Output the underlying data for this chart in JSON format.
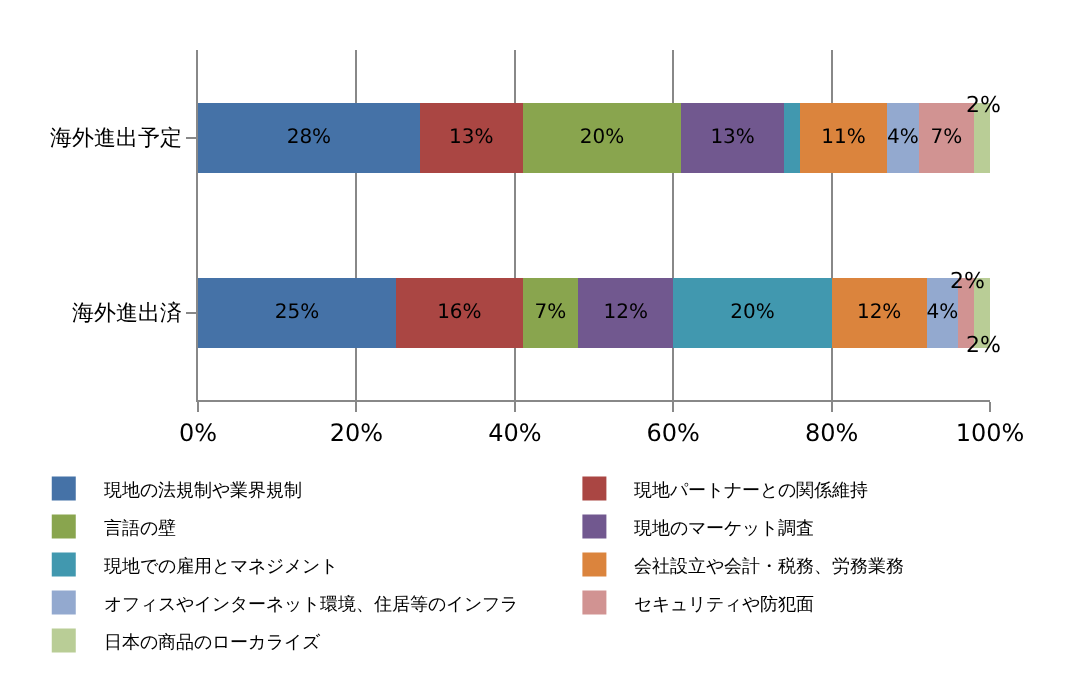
{
  "chart_data": {
    "type": "bar",
    "orientation": "horizontal",
    "stacked": true,
    "categories": [
      "海外進出予定",
      "海外進出済"
    ],
    "series": [
      {
        "name": "現地の法規制や業界規制",
        "color": "#4572a7",
        "values": [
          28,
          25
        ],
        "value_labels": [
          "28%",
          "25%"
        ]
      },
      {
        "name": "現地パートナーとの関係維持",
        "color": "#aa4643",
        "values": [
          13,
          16
        ],
        "value_labels": [
          "13%",
          "16%"
        ]
      },
      {
        "name": "言語の壁",
        "color": "#89a54e",
        "values": [
          20,
          7
        ],
        "value_labels": [
          "20%",
          "7%"
        ]
      },
      {
        "name": "現地のマーケット調査",
        "color": "#71588f",
        "values": [
          13,
          12
        ],
        "value_labels": [
          "13%",
          "12%"
        ]
      },
      {
        "name": "現地での雇用とマネジメント",
        "color": "#4198af",
        "values": [
          2,
          20
        ],
        "value_labels": [
          null,
          "20%"
        ]
      },
      {
        "name": "会社設立や会計・税務、労務業務",
        "color": "#db843d",
        "values": [
          11,
          12
        ],
        "value_labels": [
          "11%",
          "12%"
        ]
      },
      {
        "name": "オフィスやインターネット環境、住居等のインフラ",
        "color": "#93a9cf",
        "values": [
          4,
          4
        ],
        "value_labels": [
          "4%",
          "4%"
        ]
      },
      {
        "name": "セキュリティや防犯面",
        "color": "#d19392",
        "values": [
          7,
          2
        ],
        "value_labels": [
          "7%",
          "2%"
        ]
      },
      {
        "name": "日本の商品のローカライズ",
        "color": "#b9cd96",
        "values": [
          2,
          2
        ],
        "value_labels": [
          "2%",
          "2%"
        ]
      }
    ],
    "xlim": [
      0,
      100
    ],
    "xticks": [
      {
        "value": 0,
        "label": "0%"
      },
      {
        "value": 20,
        "label": "20%"
      },
      {
        "value": 40,
        "label": "40%"
      },
      {
        "value": 60,
        "label": "60%"
      },
      {
        "value": 80,
        "label": "80%"
      },
      {
        "value": 100,
        "label": "100%"
      }
    ],
    "grid": "x",
    "legend": "bottom"
  }
}
